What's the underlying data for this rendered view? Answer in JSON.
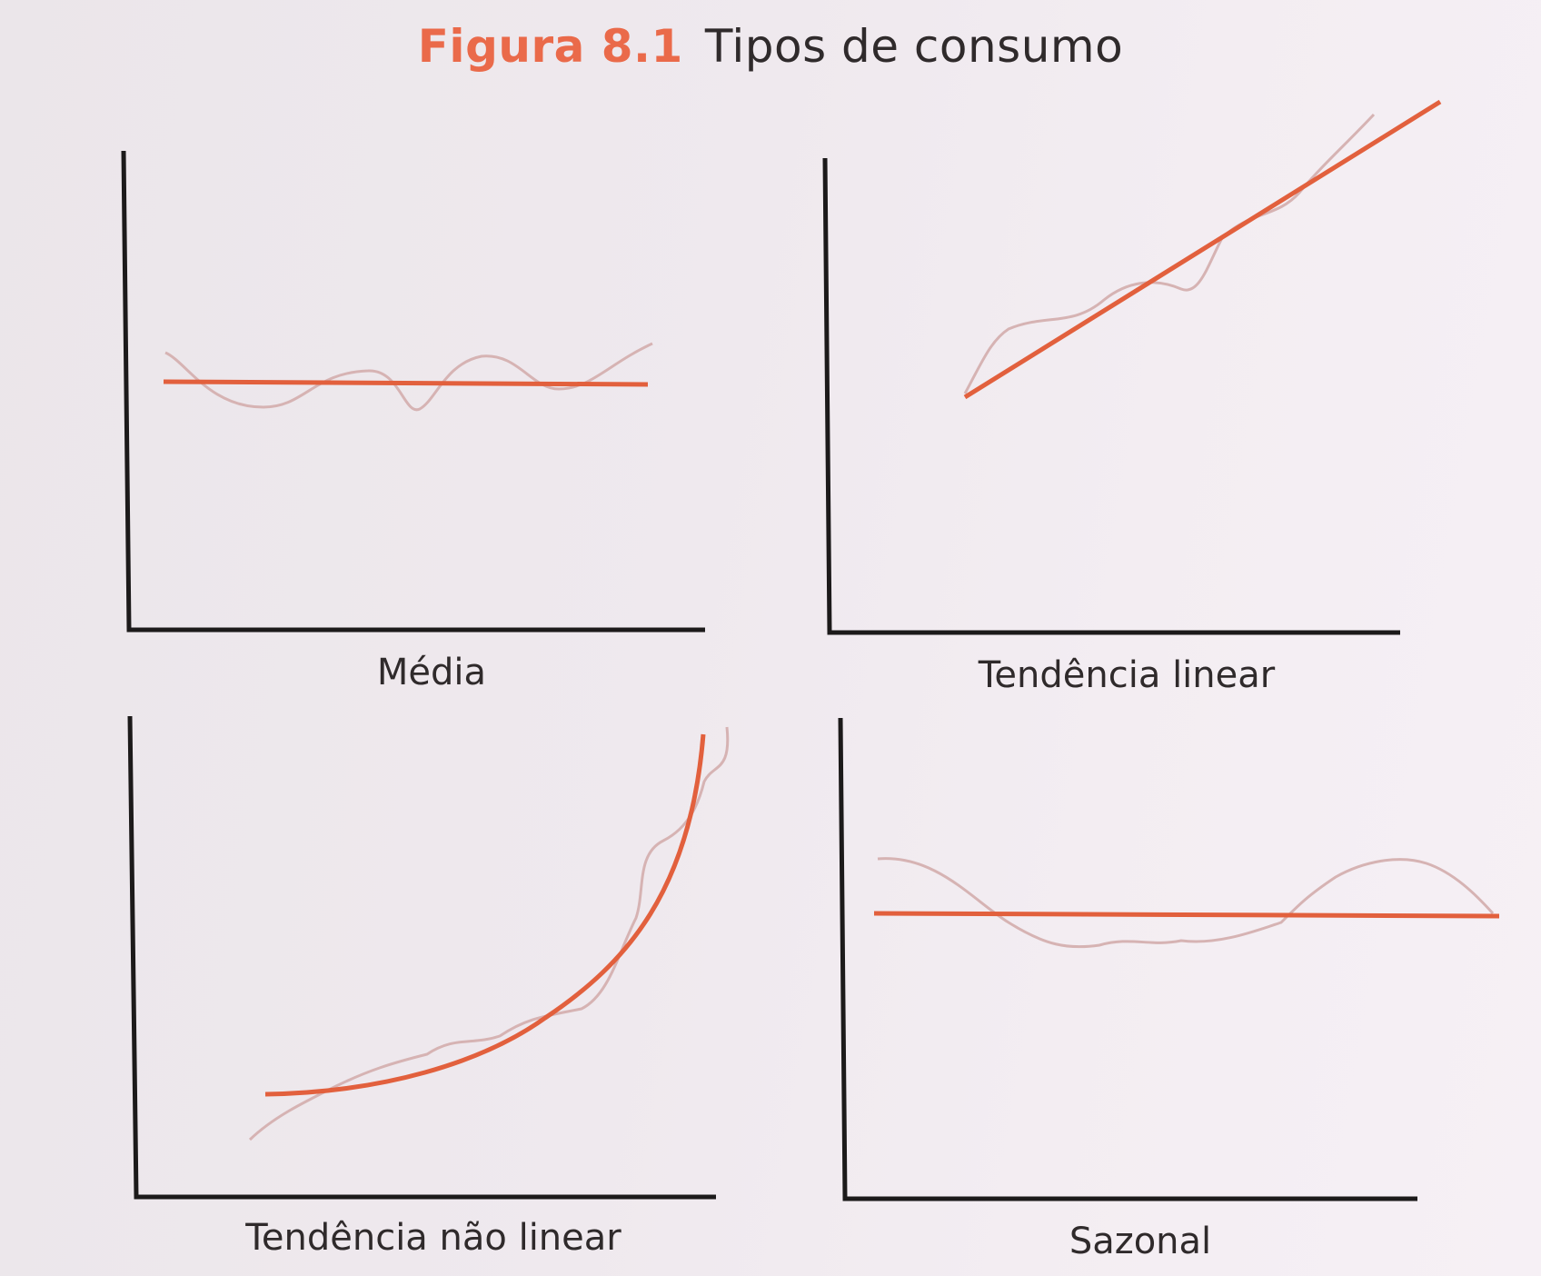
{
  "figure": {
    "number": "Figura 8.1",
    "caption": "Tipos de consumo"
  },
  "colors": {
    "trend_line": "#e2603d",
    "actual_demand": "#d6b3b3",
    "axes": "#1c1a1a",
    "background": "#eee8ed"
  },
  "panels": [
    {
      "label": "Média"
    },
    {
      "label": "Tendência linear"
    },
    {
      "label": "Tendência não linear"
    },
    {
      "label": "Sazonal"
    }
  ]
}
